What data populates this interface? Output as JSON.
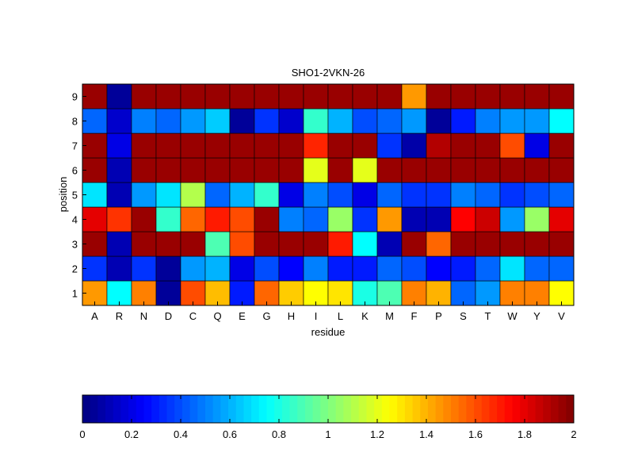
{
  "chart_data": {
    "type": "heatmap",
    "title": "SHO1-2VKN-26",
    "xlabel": "residue",
    "ylabel": "position",
    "x_categories": [
      "A",
      "R",
      "N",
      "D",
      "C",
      "Q",
      "E",
      "G",
      "H",
      "I",
      "L",
      "K",
      "M",
      "F",
      "P",
      "S",
      "T",
      "W",
      "Y",
      "V"
    ],
    "y_categories": [
      "1",
      "2",
      "3",
      "4",
      "5",
      "6",
      "7",
      "8",
      "9"
    ],
    "colormap": "jet",
    "vmin": 0,
    "vmax": 2,
    "colorbar_ticks": [
      "0",
      "0.2",
      "0.4",
      "0.6",
      "0.8",
      "1",
      "1.2",
      "1.4",
      "1.6",
      "1.8",
      "2"
    ],
    "values": [
      [
        1.45,
        0.75,
        1.5,
        0.05,
        1.6,
        1.38,
        0.3,
        1.55,
        1.35,
        1.25,
        1.3,
        0.8,
        0.9,
        1.5,
        1.4,
        0.45,
        0.55,
        1.5,
        1.5,
        1.25
      ],
      [
        0.35,
        0.1,
        0.35,
        0.05,
        0.55,
        0.6,
        0.2,
        0.4,
        0.25,
        0.5,
        0.3,
        0.3,
        0.45,
        0.4,
        0.25,
        0.3,
        0.45,
        0.7,
        0.45,
        0.45
      ],
      [
        1.95,
        0.1,
        1.95,
        1.95,
        1.95,
        0.9,
        1.6,
        1.95,
        1.95,
        1.95,
        1.7,
        0.75,
        0.1,
        1.95,
        1.55,
        1.95,
        1.95,
        1.95,
        1.95,
        1.95
      ],
      [
        1.8,
        1.65,
        1.95,
        0.85,
        1.55,
        1.7,
        1.6,
        1.95,
        0.5,
        0.45,
        1.05,
        0.35,
        1.45,
        0.1,
        0.1,
        1.75,
        1.85,
        0.55,
        1.05,
        1.8
      ],
      [
        0.7,
        0.1,
        0.55,
        0.7,
        1.1,
        0.45,
        0.6,
        0.85,
        0.2,
        0.5,
        0.4,
        0.2,
        0.45,
        0.35,
        0.35,
        0.5,
        0.45,
        0.35,
        0.4,
        0.45
      ],
      [
        1.95,
        0.1,
        1.95,
        1.95,
        1.95,
        1.95,
        1.95,
        1.95,
        1.95,
        1.2,
        1.95,
        1.2,
        1.95,
        1.95,
        1.95,
        1.95,
        1.95,
        1.95,
        1.95,
        1.95
      ],
      [
        1.95,
        0.2,
        1.95,
        1.95,
        1.95,
        1.95,
        1.95,
        1.95,
        1.95,
        1.68,
        1.95,
        1.95,
        0.35,
        0.08,
        1.9,
        1.95,
        1.95,
        1.6,
        0.2,
        1.95
      ],
      [
        0.45,
        0.15,
        0.5,
        0.45,
        0.55,
        0.65,
        0.05,
        0.35,
        0.15,
        0.85,
        0.6,
        0.4,
        0.45,
        0.55,
        0.05,
        0.3,
        0.5,
        0.55,
        0.55,
        0.75
      ],
      [
        1.95,
        0.05,
        1.95,
        1.95,
        1.95,
        1.95,
        1.95,
        1.95,
        1.95,
        1.95,
        1.95,
        1.95,
        1.95,
        1.45,
        1.95,
        1.95,
        1.95,
        1.95,
        1.95,
        1.95
      ]
    ]
  }
}
